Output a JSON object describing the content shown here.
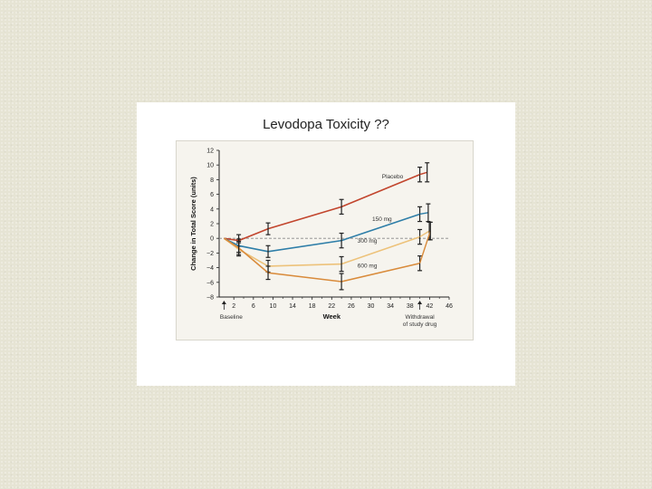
{
  "slide": {
    "title": "Levodopa Toxicity ??"
  },
  "chart_data": {
    "type": "line",
    "title": "Levodopa Toxicity ??",
    "xlabel": "Week",
    "ylabel": "Change in Total Score (units)",
    "xlim": [
      0,
      46
    ],
    "ylim": [
      -8,
      12
    ],
    "x_ticks": [
      2,
      6,
      10,
      14,
      18,
      22,
      26,
      30,
      34,
      38,
      42,
      46
    ],
    "y_ticks": [
      -8,
      -6,
      -4,
      -2,
      0,
      2,
      4,
      6,
      8,
      10,
      12
    ],
    "y_tick_labels": [
      "−8",
      "−6",
      "−4",
      "−2",
      "0",
      "2",
      "4",
      "6",
      "8",
      "10",
      "12"
    ],
    "reference_line_y": 0,
    "annotations": [
      {
        "text": "Baseline",
        "x": 0
      },
      {
        "text": "Withdrawal",
        "x": 40
      },
      {
        "text": "of study drug",
        "x": 40
      }
    ],
    "series": [
      {
        "name": "Placebo",
        "color": "#c2452d",
        "x": [
          0,
          3,
          9,
          24,
          40
        ],
        "y": [
          0,
          -0.3,
          1.3,
          4.3,
          8.7
        ],
        "err": [
          0.5,
          0.8,
          0.8,
          1.0,
          1.0
        ],
        "withdrawal": {
          "x": 41.5,
          "y": 9.0,
          "err": 1.3
        }
      },
      {
        "name": "150 mg",
        "color": "#2e7ea8",
        "x": [
          0,
          3,
          9,
          24,
          40
        ],
        "y": [
          0,
          -1.0,
          -1.8,
          -0.3,
          3.3
        ],
        "err": [
          0.5,
          0.9,
          0.8,
          1.0,
          1.0
        ],
        "withdrawal": {
          "x": 41.5,
          "y": 3.5,
          "err": 1.2
        }
      },
      {
        "name": "300 mg",
        "color": "#edc27a",
        "x": [
          0,
          3,
          9,
          24,
          40
        ],
        "y": [
          0,
          -1.5,
          -3.8,
          -3.5,
          0.2
        ],
        "err": [
          0.5,
          0.9,
          0.8,
          1.0,
          1.0
        ],
        "withdrawal": {
          "x": 41.5,
          "y": 1.0,
          "err": 1.2
        }
      },
      {
        "name": "600 mg",
        "color": "#d98b3b",
        "x": [
          0,
          3,
          9,
          24,
          40
        ],
        "y": [
          0,
          -1.3,
          -4.7,
          -5.9,
          -3.4
        ],
        "err": [
          0.5,
          0.9,
          0.9,
          1.1,
          1.0
        ],
        "withdrawal": {
          "x": 41.5,
          "y": 1.0,
          "err": 1.2
        }
      }
    ]
  }
}
